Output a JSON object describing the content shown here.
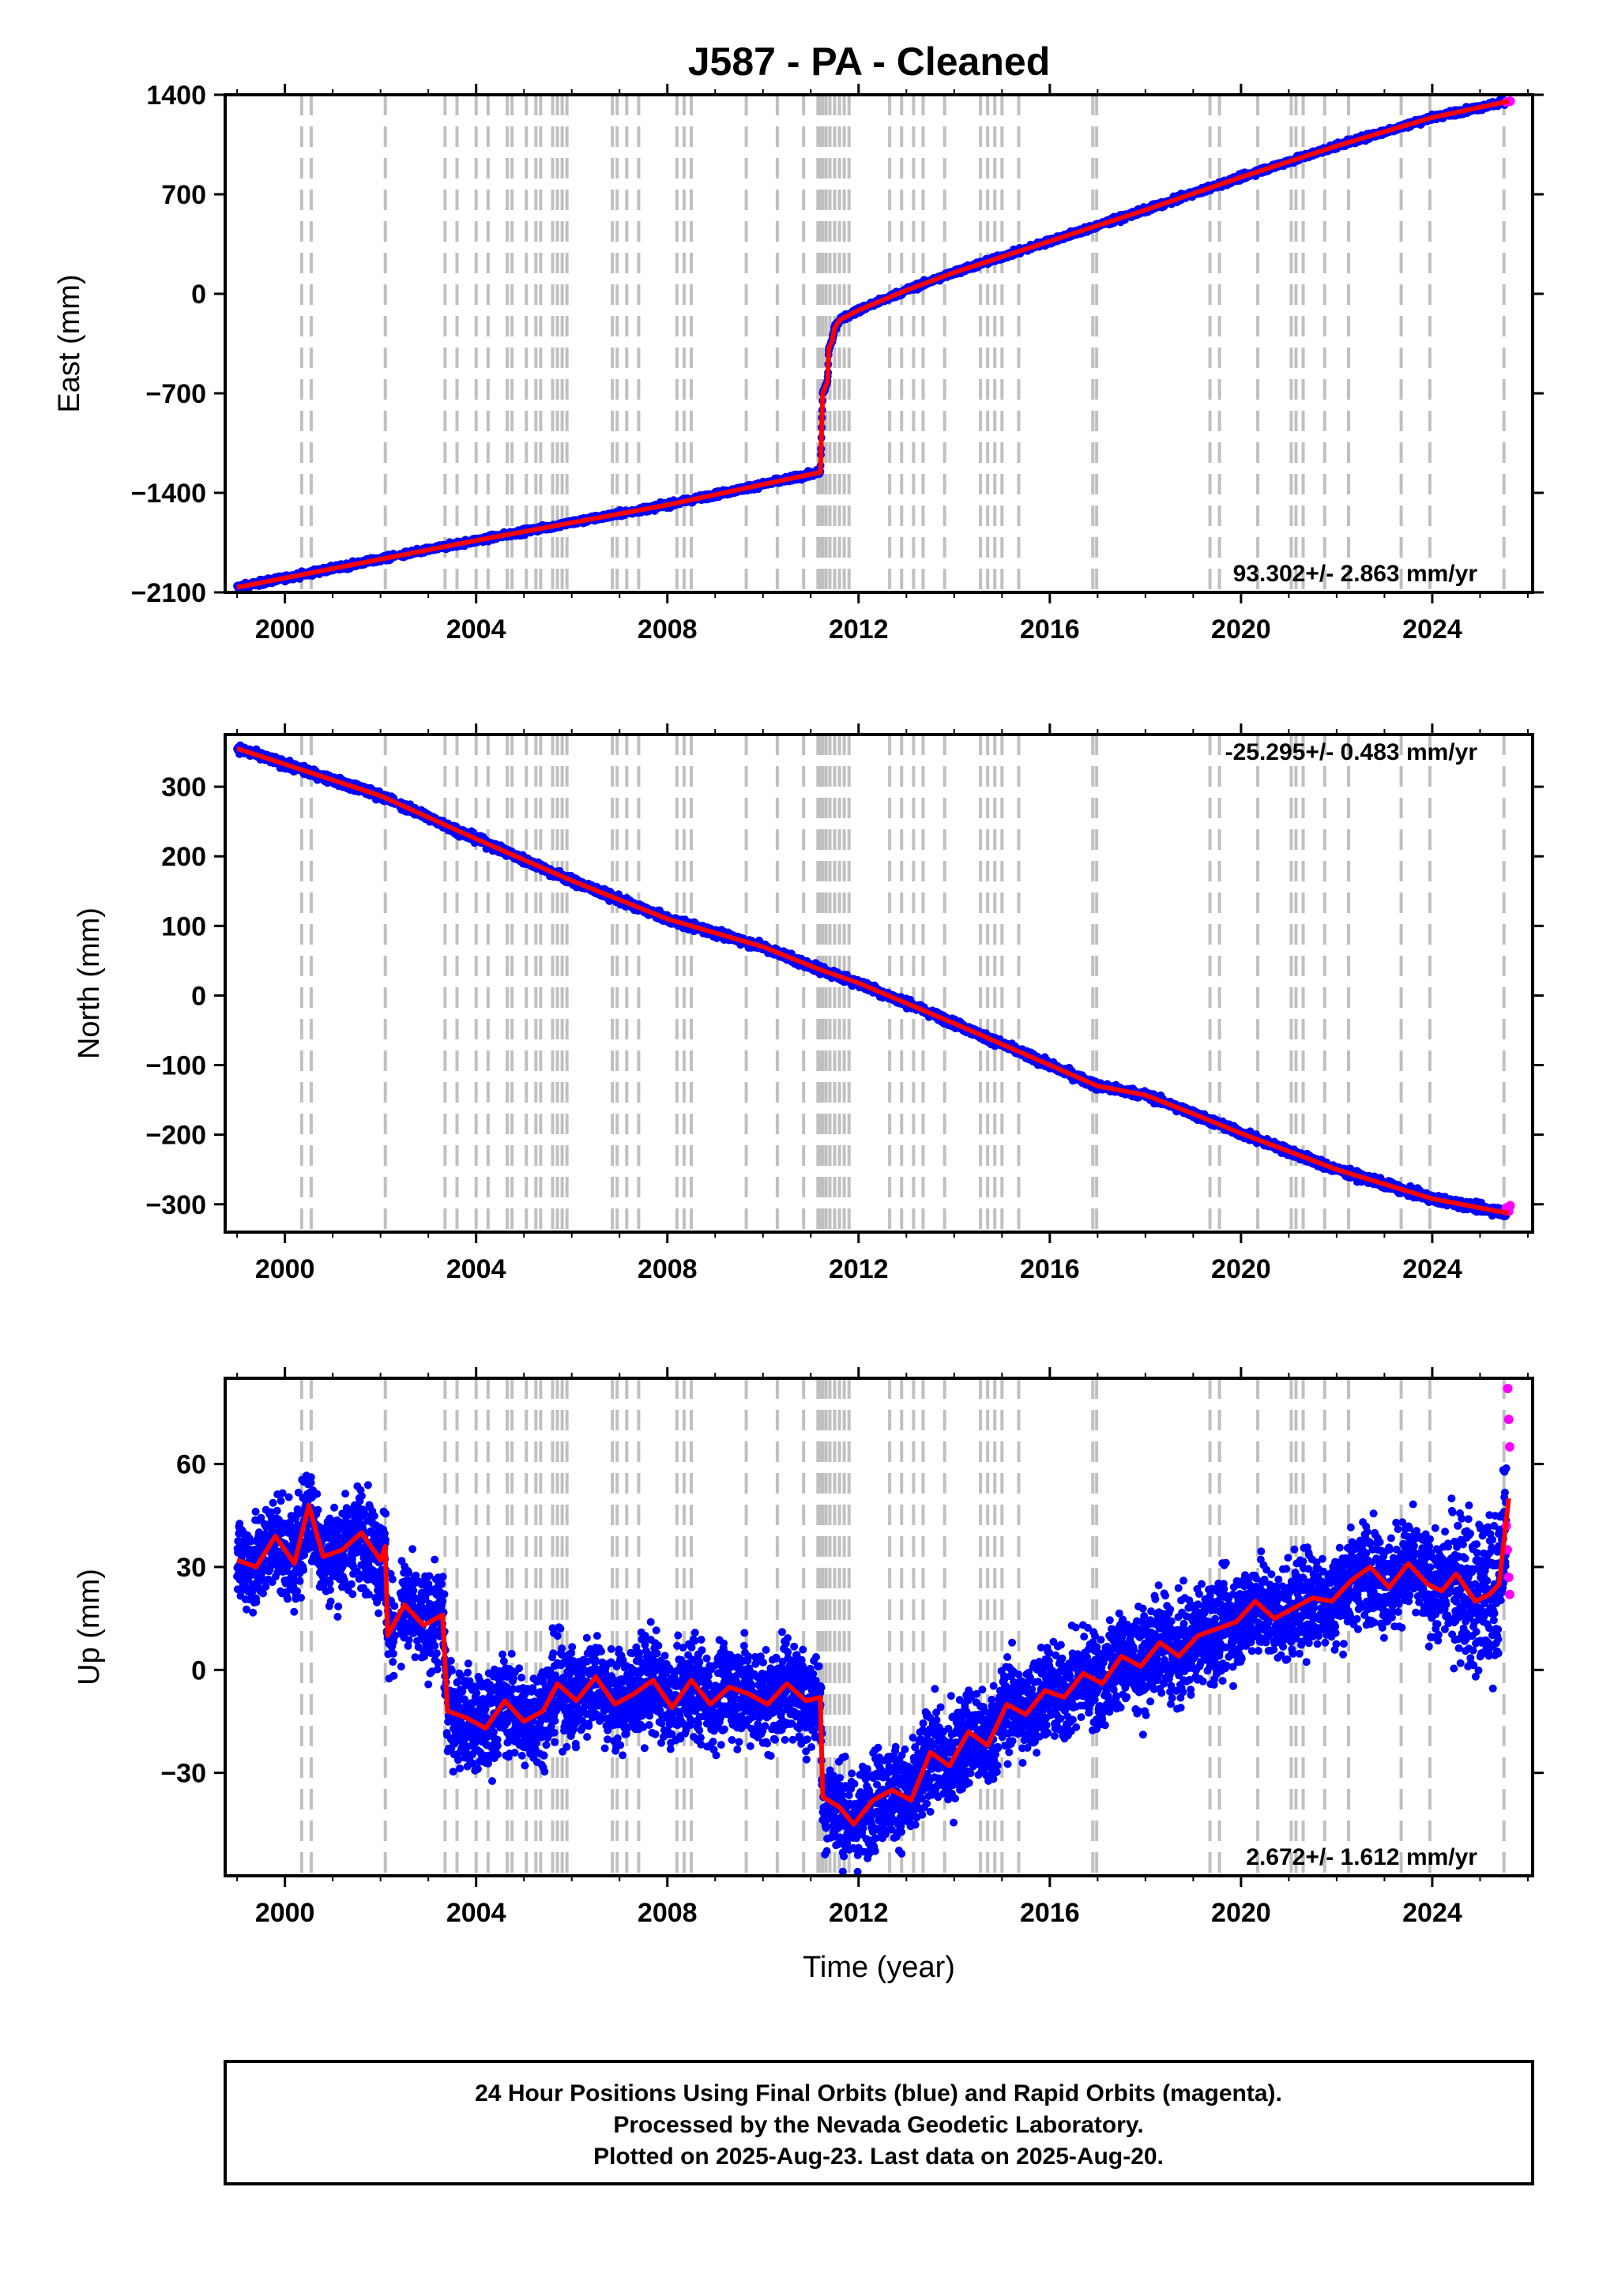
{
  "title": "J587  - PA - Cleaned",
  "footer": {
    "lines": [
      "24 Hour Positions Using Final Orbits (blue) and Rapid Orbits (magenta).",
      "Processed by the Nevada Geodetic Laboratory.",
      "Plotted on 2025-Aug-23. Last data on 2025-Aug-20."
    ]
  },
  "colors": {
    "final_orbit": "#0000ff",
    "rapid_orbit": "#ff00ff",
    "model": "#ff0000",
    "event_line": "#c0c0c0",
    "frame": "#000000"
  },
  "chart_data": [
    {
      "type": "scatter",
      "component": "east",
      "ylabel": "East (mm)",
      "xlim": [
        1998.75,
        2026.1
      ],
      "ylim": [
        -2100,
        1400
      ],
      "xticks": [
        2000,
        2004,
        2008,
        2012,
        2016,
        2020,
        2024
      ],
      "xtick_labels": [
        "2000",
        "2004",
        "2008",
        "2012",
        "2016",
        "2020",
        "2024"
      ],
      "yticks": [
        -2100,
        -1400,
        -700,
        0,
        700,
        1400
      ],
      "ytick_labels": [
        "−2100",
        "−1400",
        "−700",
        "0",
        "700",
        "1400"
      ],
      "rate_text": "93.302+/- 2.863 mm/yr",
      "rate_position": "bottom-right",
      "model_line": [
        [
          1999.0,
          -2065
        ],
        [
          2004.0,
          -1735
        ],
        [
          2008.0,
          -1485
        ],
        [
          2011.2,
          -1255
        ],
        [
          2011.25,
          -700
        ],
        [
          2011.35,
          -620
        ],
        [
          2011.38,
          -380
        ],
        [
          2011.45,
          -330
        ],
        [
          2011.5,
          -240
        ],
        [
          2011.6,
          -185
        ],
        [
          2012.0,
          -115
        ],
        [
          2013.0,
          25
        ],
        [
          2014.0,
          150
        ],
        [
          2016.0,
          370
        ],
        [
          2018.0,
          590
        ],
        [
          2020.0,
          820
        ],
        [
          2022.0,
          1040
        ],
        [
          2024.0,
          1240
        ],
        [
          2025.6,
          1355
        ]
      ],
      "rapid_points": [
        [
          2025.55,
          1350
        ],
        [
          2025.6,
          1352
        ],
        [
          2025.63,
          1355
        ]
      ]
    },
    {
      "type": "scatter",
      "component": "north",
      "ylabel": "North (mm)",
      "xlim": [
        1998.75,
        2026.1
      ],
      "ylim": [
        -340,
        375
      ],
      "xticks": [
        2000,
        2004,
        2008,
        2012,
        2016,
        2020,
        2024
      ],
      "xtick_labels": [
        "2000",
        "2004",
        "2008",
        "2012",
        "2016",
        "2020",
        "2024"
      ],
      "yticks": [
        -300,
        -200,
        -100,
        0,
        100,
        200,
        300
      ],
      "ytick_labels": [
        "−300",
        "−200",
        "−100",
        "0",
        "100",
        "200",
        "300"
      ],
      "rate_text": "-25.295+/- 0.483 mm/yr",
      "rate_position": "top-right",
      "model_line": [
        [
          1999.0,
          355
        ],
        [
          2002.0,
          287
        ],
        [
          2004.0,
          225
        ],
        [
          2006.0,
          165
        ],
        [
          2008.0,
          110
        ],
        [
          2010.0,
          70
        ],
        [
          2011.2,
          37
        ],
        [
          2012.0,
          18
        ],
        [
          2014.0,
          -40
        ],
        [
          2016.0,
          -100
        ],
        [
          2017.0,
          -130
        ],
        [
          2018.0,
          -143
        ],
        [
          2019.0,
          -170
        ],
        [
          2020.0,
          -198
        ],
        [
          2022.0,
          -250
        ],
        [
          2024.0,
          -292
        ],
        [
          2025.6,
          -313
        ]
      ],
      "rapid_points": [
        [
          2025.55,
          -305
        ],
        [
          2025.6,
          -310
        ],
        [
          2025.63,
          -302
        ]
      ]
    },
    {
      "type": "scatter",
      "component": "up",
      "ylabel": "Up (mm)",
      "xlabel": "Time (year)",
      "xlim": [
        1998.75,
        2026.1
      ],
      "ylim": [
        -60,
        85
      ],
      "xticks": [
        2000,
        2004,
        2008,
        2012,
        2016,
        2020,
        2024
      ],
      "xtick_labels": [
        "2000",
        "2004",
        "2008",
        "2012",
        "2016",
        "2020",
        "2024"
      ],
      "yticks": [
        -30,
        0,
        30,
        60
      ],
      "ytick_labels": [
        "−30",
        "0",
        "30",
        "60"
      ],
      "rate_text": "2.672+/- 1.612 mm/yr",
      "rate_position": "bottom-right",
      "model_line": [
        [
          1999.0,
          32
        ],
        [
          1999.4,
          30
        ],
        [
          1999.8,
          39
        ],
        [
          2000.2,
          31
        ],
        [
          2000.5,
          48
        ],
        [
          2000.8,
          33
        ],
        [
          2001.2,
          35
        ],
        [
          2001.6,
          40
        ],
        [
          2002.0,
          32
        ],
        [
          2002.1,
          36
        ],
        [
          2002.15,
          10
        ],
        [
          2002.5,
          19
        ],
        [
          2002.9,
          13
        ],
        [
          2003.3,
          16
        ],
        [
          2003.4,
          -12
        ],
        [
          2003.8,
          -14
        ],
        [
          2004.2,
          -17
        ],
        [
          2004.6,
          -9
        ],
        [
          2005.0,
          -15
        ],
        [
          2005.4,
          -12
        ],
        [
          2005.7,
          -4
        ],
        [
          2006.1,
          -9
        ],
        [
          2006.5,
          -2
        ],
        [
          2006.9,
          -10
        ],
        [
          2007.3,
          -7
        ],
        [
          2007.7,
          -3
        ],
        [
          2008.1,
          -11
        ],
        [
          2008.5,
          -3
        ],
        [
          2008.9,
          -10
        ],
        [
          2009.3,
          -5
        ],
        [
          2009.7,
          -7
        ],
        [
          2010.1,
          -10
        ],
        [
          2010.5,
          -4
        ],
        [
          2010.9,
          -9
        ],
        [
          2011.2,
          -8
        ],
        [
          2011.25,
          -37
        ],
        [
          2011.6,
          -40
        ],
        [
          2011.9,
          -45
        ],
        [
          2012.3,
          -38
        ],
        [
          2012.7,
          -35
        ],
        [
          2013.1,
          -38
        ],
        [
          2013.5,
          -24
        ],
        [
          2013.9,
          -28
        ],
        [
          2014.3,
          -18
        ],
        [
          2014.7,
          -22
        ],
        [
          2015.1,
          -10
        ],
        [
          2015.5,
          -13
        ],
        [
          2015.9,
          -6
        ],
        [
          2016.3,
          -8
        ],
        [
          2016.7,
          -1
        ],
        [
          2017.1,
          -4
        ],
        [
          2017.5,
          4
        ],
        [
          2017.9,
          1
        ],
        [
          2018.3,
          8
        ],
        [
          2018.7,
          4
        ],
        [
          2019.1,
          10
        ],
        [
          2019.5,
          12
        ],
        [
          2019.9,
          14
        ],
        [
          2020.3,
          20
        ],
        [
          2020.7,
          15
        ],
        [
          2021.1,
          18
        ],
        [
          2021.5,
          21
        ],
        [
          2021.9,
          20
        ],
        [
          2022.3,
          26
        ],
        [
          2022.7,
          30
        ],
        [
          2023.1,
          24
        ],
        [
          2023.5,
          31
        ],
        [
          2023.9,
          25
        ],
        [
          2024.2,
          23
        ],
        [
          2024.5,
          28
        ],
        [
          2024.9,
          20
        ],
        [
          2025.2,
          22
        ],
        [
          2025.4,
          25
        ],
        [
          2025.6,
          50
        ]
      ],
      "rapid_points": [
        [
          2025.58,
          82
        ],
        [
          2025.6,
          73
        ],
        [
          2025.62,
          65
        ],
        [
          2025.55,
          42
        ],
        [
          2025.57,
          35
        ],
        [
          2025.6,
          27
        ],
        [
          2025.62,
          22
        ]
      ]
    }
  ],
  "event_lines": [
    2000.35,
    2000.55,
    2002.1,
    2003.35,
    2003.6,
    2004.0,
    2004.25,
    2004.65,
    2004.75,
    2005.05,
    2005.25,
    2005.35,
    2005.6,
    2005.7,
    2005.8,
    2005.9,
    2006.85,
    2006.95,
    2007.15,
    2007.4,
    2008.2,
    2008.35,
    2008.5,
    2009.65,
    2010.3,
    2010.85,
    2011.15,
    2011.2,
    2011.25,
    2011.32,
    2011.4,
    2011.5,
    2011.6,
    2011.7,
    2011.8,
    2012.65,
    2012.9,
    2013.15,
    2013.35,
    2013.8,
    2014.55,
    2014.7,
    2014.85,
    2015.0,
    2015.35,
    2016.9,
    2016.98,
    2019.35,
    2019.55,
    2020.35,
    2021.05,
    2021.15,
    2021.3,
    2021.75,
    2022.25,
    2023.35,
    2023.95,
    2025.5
  ]
}
